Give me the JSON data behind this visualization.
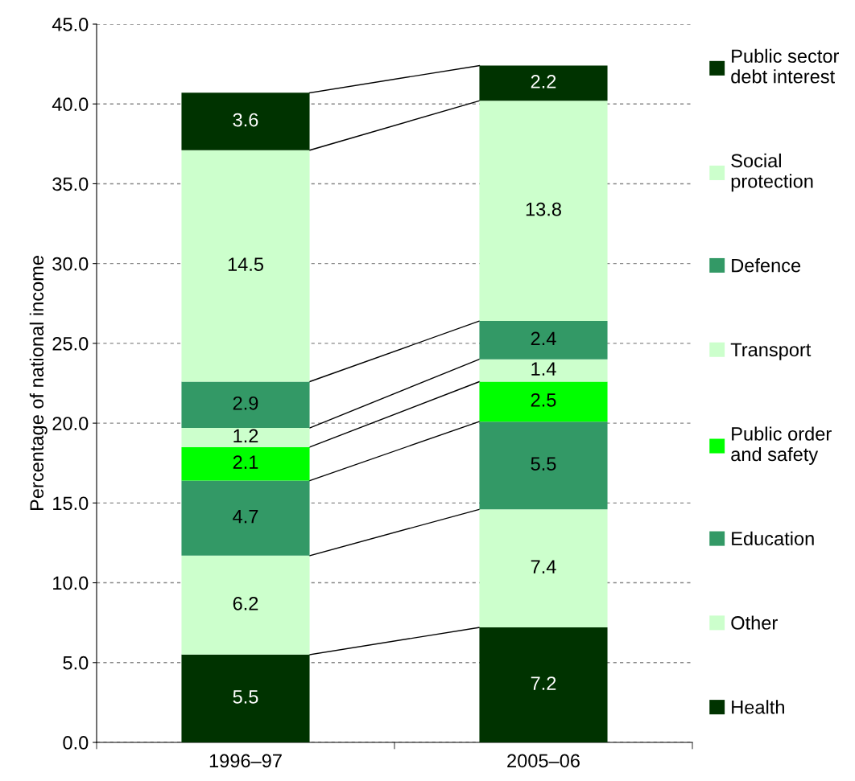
{
  "chart_data": {
    "type": "bar",
    "stacked": true,
    "ylabel": "Percentage of national income",
    "categories": [
      "1996–97",
      "2005–06"
    ],
    "series": [
      {
        "name": "Health",
        "color": "#003300",
        "values": [
          5.5,
          7.2
        ]
      },
      {
        "name": "Other",
        "color": "#ccffcc",
        "values": [
          6.2,
          7.4
        ]
      },
      {
        "name": "Education",
        "color": "#339966",
        "values": [
          4.7,
          5.5
        ]
      },
      {
        "name": "Public order\nand safety",
        "color": "#00ff00",
        "values": [
          2.1,
          2.5
        ]
      },
      {
        "name": "Transport",
        "color": "#ccffcc",
        "values": [
          1.2,
          1.4
        ]
      },
      {
        "name": "Defence",
        "color": "#339966",
        "values": [
          2.9,
          2.4
        ]
      },
      {
        "name": "Social\nprotection",
        "color": "#ccffcc",
        "values": [
          14.5,
          13.8
        ]
      },
      {
        "name": "Public sector\ndebt interest",
        "color": "#003300",
        "values": [
          3.6,
          2.2
        ]
      }
    ],
    "ylim": [
      0,
      45
    ],
    "yticks": [
      {
        "value": 0,
        "label": "0.0"
      },
      {
        "value": 5,
        "label": "5.0"
      },
      {
        "value": 10,
        "label": "10.0"
      },
      {
        "value": 15,
        "label": "15.0"
      },
      {
        "value": 20,
        "label": "20.0"
      },
      {
        "value": 25,
        "label": "25.0"
      },
      {
        "value": 30,
        "label": "30.0"
      },
      {
        "value": 35,
        "label": "35.0"
      },
      {
        "value": 40,
        "label": "40.0"
      },
      {
        "value": 45,
        "label": "45.0"
      }
    ],
    "grid": "y",
    "legend": "right",
    "data_labels": true
  }
}
